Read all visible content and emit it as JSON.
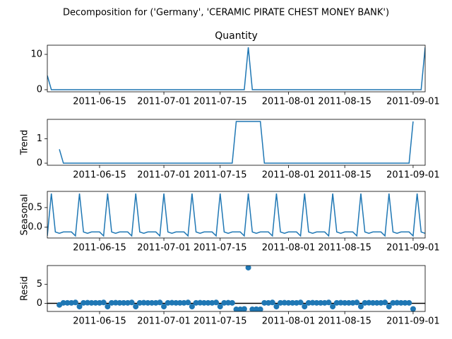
{
  "chart_data": {
    "type": "decomposition",
    "title": "Decomposition for ('Germany', 'CERAMIC PIRATE CHEST MONEY BANK')",
    "x": [
      "2011-06-02",
      "2011-06-03",
      "2011-06-04",
      "2011-06-05",
      "2011-06-06",
      "2011-06-07",
      "2011-06-08",
      "2011-06-09",
      "2011-06-10",
      "2011-06-11",
      "2011-06-12",
      "2011-06-13",
      "2011-06-14",
      "2011-06-15",
      "2011-06-16",
      "2011-06-17",
      "2011-06-18",
      "2011-06-19",
      "2011-06-20",
      "2011-06-21",
      "2011-06-22",
      "2011-06-23",
      "2011-06-24",
      "2011-06-25",
      "2011-06-26",
      "2011-06-27",
      "2011-06-28",
      "2011-06-29",
      "2011-06-30",
      "2011-07-01",
      "2011-07-02",
      "2011-07-03",
      "2011-07-04",
      "2011-07-05",
      "2011-07-06",
      "2011-07-07",
      "2011-07-08",
      "2011-07-09",
      "2011-07-10",
      "2011-07-11",
      "2011-07-12",
      "2011-07-13",
      "2011-07-14",
      "2011-07-15",
      "2011-07-16",
      "2011-07-17",
      "2011-07-18",
      "2011-07-19",
      "2011-07-20",
      "2011-07-21",
      "2011-07-22",
      "2011-07-23",
      "2011-07-24",
      "2011-07-25",
      "2011-07-26",
      "2011-07-27",
      "2011-07-28",
      "2011-07-29",
      "2011-07-30",
      "2011-07-31",
      "2011-08-01",
      "2011-08-02",
      "2011-08-03",
      "2011-08-04",
      "2011-08-05",
      "2011-08-06",
      "2011-08-07",
      "2011-08-08",
      "2011-08-09",
      "2011-08-10",
      "2011-08-11",
      "2011-08-12",
      "2011-08-13",
      "2011-08-14",
      "2011-08-15",
      "2011-08-16",
      "2011-08-17",
      "2011-08-18",
      "2011-08-19",
      "2011-08-20",
      "2011-08-21",
      "2011-08-22",
      "2011-08-23",
      "2011-08-24",
      "2011-08-25",
      "2011-08-26",
      "2011-08-27",
      "2011-08-28",
      "2011-08-29",
      "2011-08-30",
      "2011-08-31",
      "2011-09-01",
      "2011-09-02",
      "2011-09-03",
      "2011-09-04"
    ],
    "xlim": [
      "2011-06-02",
      "2011-09-04"
    ],
    "xticks": [
      "2011-06-15",
      "2011-07-01",
      "2011-07-15",
      "2011-08-01",
      "2011-08-15",
      "2011-09-01"
    ],
    "panels": [
      {
        "type": "line",
        "title": "Quantity",
        "color": "#1f77b4",
        "ylim": [
          -0.6,
          12.6
        ],
        "yticks": [
          0,
          10
        ],
        "values": [
          4,
          0,
          0,
          0,
          0,
          0,
          0,
          0,
          0,
          0,
          0,
          0,
          0,
          0,
          0,
          0,
          0,
          0,
          0,
          0,
          0,
          0,
          0,
          0,
          0,
          0,
          0,
          0,
          0,
          0,
          0,
          0,
          0,
          0,
          0,
          0,
          0,
          0,
          0,
          0,
          0,
          0,
          0,
          0,
          0,
          0,
          0,
          0,
          0,
          0,
          12,
          0,
          0,
          0,
          0,
          0,
          0,
          0,
          0,
          0,
          0,
          0,
          0,
          0,
          0,
          0,
          0,
          0,
          0,
          0,
          0,
          0,
          0,
          0,
          0,
          0,
          0,
          0,
          0,
          0,
          0,
          0,
          0,
          0,
          0,
          0,
          0,
          0,
          0,
          0,
          0,
          0,
          0,
          0,
          12
        ]
      },
      {
        "type": "line",
        "ylabel": "Trend",
        "color": "#1f77b4",
        "ylim": [
          -0.086,
          1.8
        ],
        "yticks": [
          0,
          1
        ],
        "values": [
          null,
          null,
          null,
          0.571,
          0,
          0,
          0,
          0,
          0,
          0,
          0,
          0,
          0,
          0,
          0,
          0,
          0,
          0,
          0,
          0,
          0,
          0,
          0,
          0,
          0,
          0,
          0,
          0,
          0,
          0,
          0,
          0,
          0,
          0,
          0,
          0,
          0,
          0,
          0,
          0,
          0,
          0,
          0,
          0,
          0,
          0,
          0,
          1.714,
          1.714,
          1.714,
          1.714,
          1.714,
          1.714,
          1.714,
          0,
          0,
          0,
          0,
          0,
          0,
          0,
          0,
          0,
          0,
          0,
          0,
          0,
          0,
          0,
          0,
          0,
          0,
          0,
          0,
          0,
          0,
          0,
          0,
          0,
          0,
          0,
          0,
          0,
          0,
          0,
          0,
          0,
          0,
          0,
          0,
          0,
          1.714,
          null,
          null,
          null
        ]
      },
      {
        "type": "line",
        "ylabel": "Seasonal",
        "color": "#1f77b4",
        "ylim": [
          -0.274,
          0.911
        ],
        "yticks": [
          0.5,
          {
            "value": 0,
            "label": "0.0"
          }
        ],
        "values": [
          -0.22,
          0.857,
          -0.12,
          -0.155,
          -0.12,
          -0.12,
          -0.12,
          -0.22,
          0.857,
          -0.12,
          -0.155,
          -0.12,
          -0.12,
          -0.12,
          -0.22,
          0.857,
          -0.12,
          -0.155,
          -0.12,
          -0.12,
          -0.12,
          -0.22,
          0.857,
          -0.12,
          -0.155,
          -0.12,
          -0.12,
          -0.12,
          -0.22,
          0.857,
          -0.12,
          -0.155,
          -0.12,
          -0.12,
          -0.12,
          -0.22,
          0.857,
          -0.12,
          -0.155,
          -0.12,
          -0.12,
          -0.12,
          -0.22,
          0.857,
          -0.12,
          -0.155,
          -0.12,
          -0.12,
          -0.12,
          -0.22,
          0.857,
          -0.12,
          -0.155,
          -0.12,
          -0.12,
          -0.12,
          -0.22,
          0.857,
          -0.12,
          -0.155,
          -0.12,
          -0.12,
          -0.12,
          -0.22,
          0.857,
          -0.12,
          -0.155,
          -0.12,
          -0.12,
          -0.12,
          -0.22,
          0.857,
          -0.12,
          -0.155,
          -0.12,
          -0.12,
          -0.12,
          -0.22,
          0.857,
          -0.12,
          -0.155,
          -0.12,
          -0.12,
          -0.12,
          -0.22,
          0.857,
          -0.12,
          -0.155,
          -0.12,
          -0.12,
          -0.12,
          -0.22,
          0.857,
          -0.12,
          -0.155
        ]
      },
      {
        "type": "scatter",
        "ylabel": "Resid",
        "color": "#1f77b4",
        "zero_line": true,
        "ylim": [
          -2.15,
          9.98
        ],
        "yticks": [
          0,
          5
        ],
        "values": [
          null,
          null,
          null,
          -0.416,
          0.12,
          0.12,
          0.12,
          0.22,
          -0.857,
          0.12,
          0.155,
          0.12,
          0.12,
          0.12,
          0.22,
          -0.857,
          0.12,
          0.155,
          0.12,
          0.12,
          0.12,
          0.22,
          -0.857,
          0.12,
          0.155,
          0.12,
          0.12,
          0.12,
          0.22,
          -0.857,
          0.12,
          0.155,
          0.12,
          0.12,
          0.12,
          0.22,
          -0.857,
          0.12,
          0.155,
          0.12,
          0.12,
          0.12,
          0.22,
          -0.857,
          0.12,
          0.155,
          0.12,
          -1.594,
          -1.594,
          -1.494,
          9.429,
          -1.594,
          -1.559,
          -1.594,
          0.12,
          0.12,
          0.22,
          -0.857,
          0.12,
          0.155,
          0.12,
          0.12,
          0.12,
          0.22,
          -0.857,
          0.12,
          0.155,
          0.12,
          0.12,
          0.12,
          0.22,
          -0.857,
          0.12,
          0.155,
          0.12,
          0.12,
          0.12,
          0.22,
          -0.857,
          0.12,
          0.155,
          0.12,
          0.12,
          0.12,
          0.22,
          -0.857,
          0.12,
          0.155,
          0.12,
          0.12,
          0.12,
          -1.494,
          null,
          null,
          null
        ]
      }
    ]
  }
}
